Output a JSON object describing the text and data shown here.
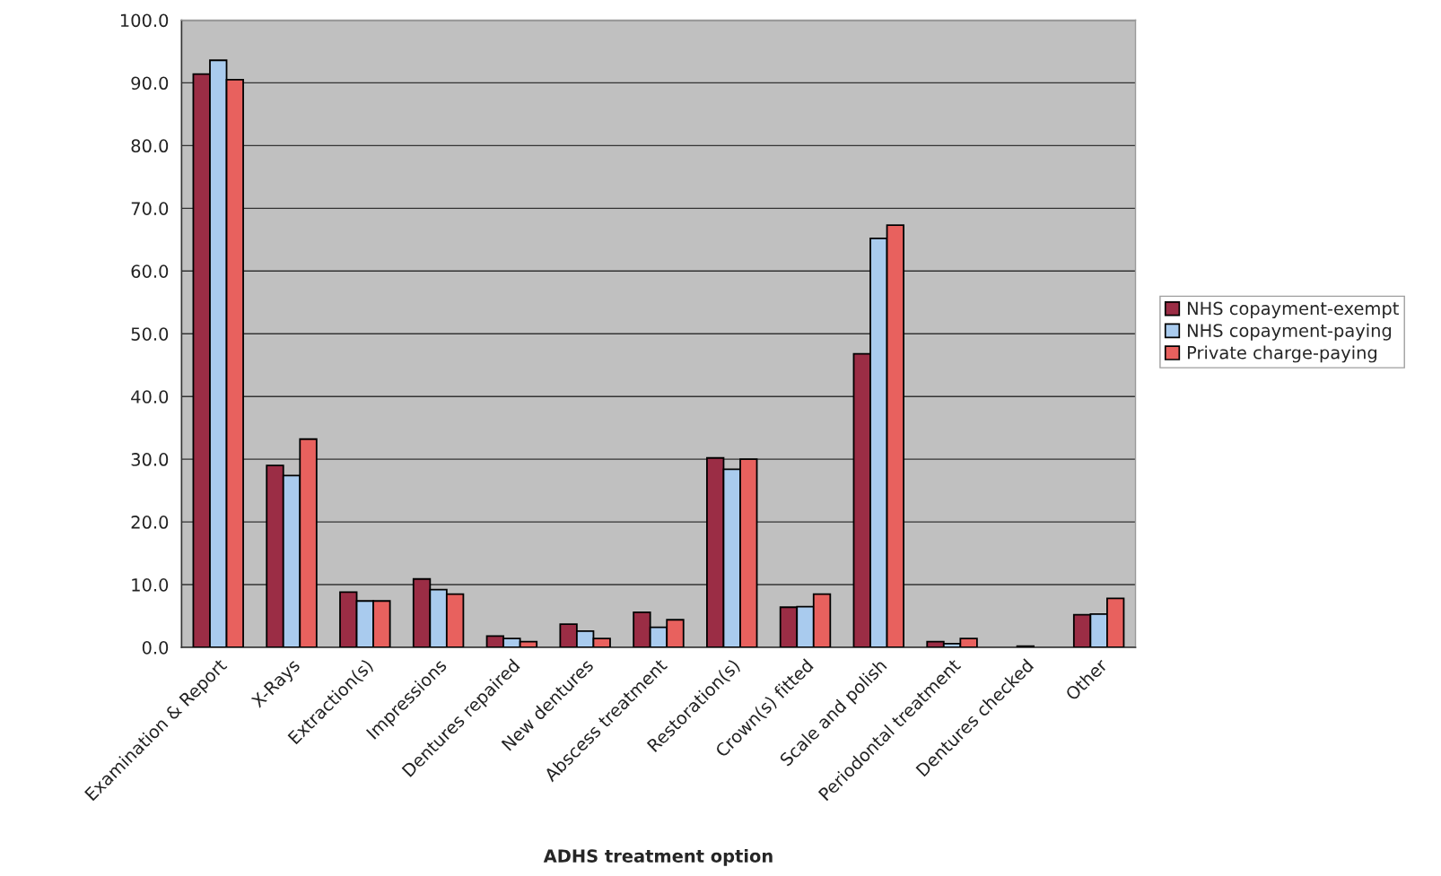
{
  "chart_data": {
    "type": "bar",
    "xlabel": "ADHS treatment option",
    "categories": [
      "Examination & Report",
      "X-Rays",
      "Extraction(s)",
      "Impressions",
      "Dentures repaired",
      "New dentures",
      "Abscess treatment",
      "Restoration(s)",
      "Crown(s) fitted",
      "Scale and polish",
      "Periodontal treatment",
      "Dentures checked",
      "Other"
    ],
    "series": [
      {
        "name": "NHS copayment-exempt",
        "color": "#9b2d45",
        "values": [
          91.4,
          29.0,
          8.8,
          10.9,
          1.8,
          3.7,
          5.6,
          30.2,
          6.4,
          46.8,
          0.9,
          null,
          5.2
        ]
      },
      {
        "name": "NHS copayment-paying",
        "color": "#a9cbee",
        "values": [
          93.6,
          27.4,
          7.4,
          9.2,
          1.4,
          2.6,
          3.2,
          28.4,
          6.5,
          65.2,
          0.6,
          0.2,
          5.3
        ]
      },
      {
        "name": "Private charge-paying",
        "color": "#e8615e",
        "values": [
          90.5,
          33.2,
          7.4,
          8.5,
          0.9,
          1.4,
          4.4,
          30.0,
          8.5,
          67.3,
          1.4,
          null,
          7.8
        ]
      }
    ],
    "ylim": [
      0,
      100
    ],
    "yticks": [
      {
        "value": 0,
        "label": "0.0"
      },
      {
        "value": 10,
        "label": "10.0"
      },
      {
        "value": 20,
        "label": "20.0"
      },
      {
        "value": 30,
        "label": "30.0"
      },
      {
        "value": 40,
        "label": "40.0"
      },
      {
        "value": 50,
        "label": "50.0"
      },
      {
        "value": 60,
        "label": "60.0"
      },
      {
        "value": 70,
        "label": "70.0"
      },
      {
        "value": 80,
        "label": "80.0"
      },
      {
        "value": 90,
        "label": "90.0"
      },
      {
        "value": 100,
        "label": "100.0"
      }
    ],
    "grid": "y",
    "legend": "right"
  }
}
